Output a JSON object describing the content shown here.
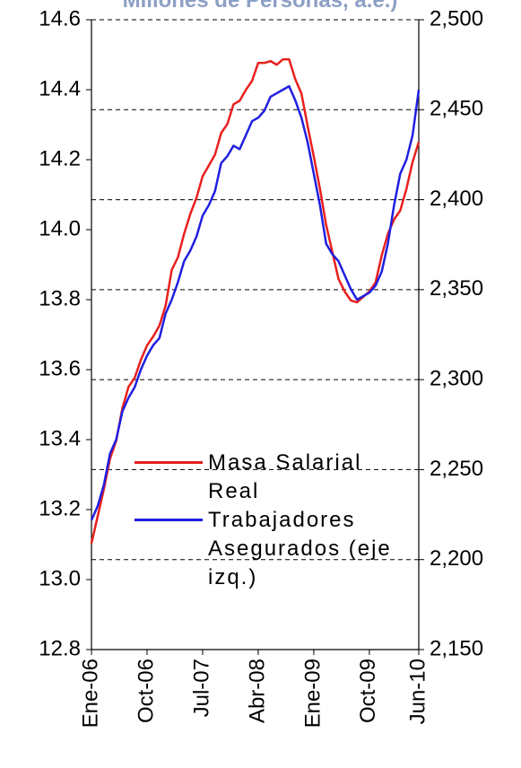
{
  "chart_data": {
    "type": "line",
    "title": "Millones de Personas, a.e.)",
    "categories": [
      "Ene-06",
      null,
      null,
      null,
      null,
      null,
      null,
      null,
      null,
      "Oct-06",
      null,
      null,
      null,
      null,
      null,
      null,
      null,
      null,
      "Jul-07",
      null,
      null,
      null,
      null,
      null,
      null,
      null,
      null,
      "Abr-08",
      null,
      null,
      null,
      null,
      null,
      null,
      null,
      null,
      "Ene-09",
      null,
      null,
      null,
      null,
      null,
      null,
      null,
      null,
      "Oct-09",
      null,
      null,
      null,
      null,
      null,
      null,
      null,
      "Jun-10"
    ],
    "series": [
      {
        "name": "Masa Salarial Real",
        "color": "#e8201e",
        "axis": "y2",
        "values": [
          2209,
          2224,
          2239,
          2256,
          2266,
          2284,
          2296,
          2301,
          2311,
          2319,
          2324,
          2330,
          2341,
          2361,
          2368,
          2381,
          2392,
          2401,
          2413,
          2419,
          2425,
          2437,
          2442,
          2453,
          2455,
          2461,
          2466,
          2476,
          2476,
          2477,
          2475,
          2478,
          2478,
          2467,
          2459,
          2441,
          2424,
          2406,
          2386,
          2371,
          2356,
          2349,
          2344,
          2343,
          2346,
          2349,
          2354,
          2369,
          2381,
          2389,
          2394,
          2406,
          2421,
          2432
        ]
      },
      {
        "name": "Trabajadores Asegurados (eje izq.)",
        "color": "#1f1fe0",
        "values": [
          13.17,
          13.21,
          13.27,
          13.36,
          13.4,
          13.48,
          13.52,
          13.55,
          13.6,
          13.64,
          13.67,
          13.69,
          13.76,
          13.8,
          13.85,
          13.91,
          13.94,
          13.98,
          14.04,
          14.07,
          14.11,
          14.19,
          14.21,
          14.24,
          14.23,
          14.27,
          14.31,
          14.32,
          14.34,
          14.38,
          14.39,
          14.4,
          14.41,
          14.37,
          14.32,
          14.25,
          14.16,
          14.07,
          13.96,
          13.93,
          13.91,
          13.87,
          13.83,
          13.8,
          13.81,
          13.82,
          13.84,
          13.88,
          13.96,
          14.07,
          14.16,
          14.2,
          14.27,
          14.4
        ]
      }
    ],
    "ylim": [
      12.8,
      14.6
    ],
    "yticks": [
      {
        "value": 12.8,
        "label": "12.8"
      },
      {
        "value": 13,
        "label": "13.0"
      },
      {
        "value": 13.2,
        "label": "13.2"
      },
      {
        "value": 13.4,
        "label": "13.4"
      },
      {
        "value": 13.6,
        "label": "13.6"
      },
      {
        "value": 13.8,
        "label": "13.8"
      },
      {
        "value": 14,
        "label": "14.0"
      },
      {
        "value": 14.2,
        "label": "14.2"
      },
      {
        "value": 14.4,
        "label": "14.4"
      },
      {
        "value": 14.6,
        "label": "14.6"
      }
    ],
    "y2lim": [
      2150,
      2500
    ],
    "y2ticks": [
      {
        "value": 2150,
        "label": "2,150"
      },
      {
        "value": 2200,
        "label": "2,200"
      },
      {
        "value": 2250,
        "label": "2,250"
      },
      {
        "value": 2300,
        "label": "2,300"
      },
      {
        "value": 2350,
        "label": "2,350"
      },
      {
        "value": 2400,
        "label": "2,400"
      },
      {
        "value": 2450,
        "label": "2,450"
      },
      {
        "value": 2500,
        "label": "2,500"
      }
    ],
    "grid": true
  }
}
